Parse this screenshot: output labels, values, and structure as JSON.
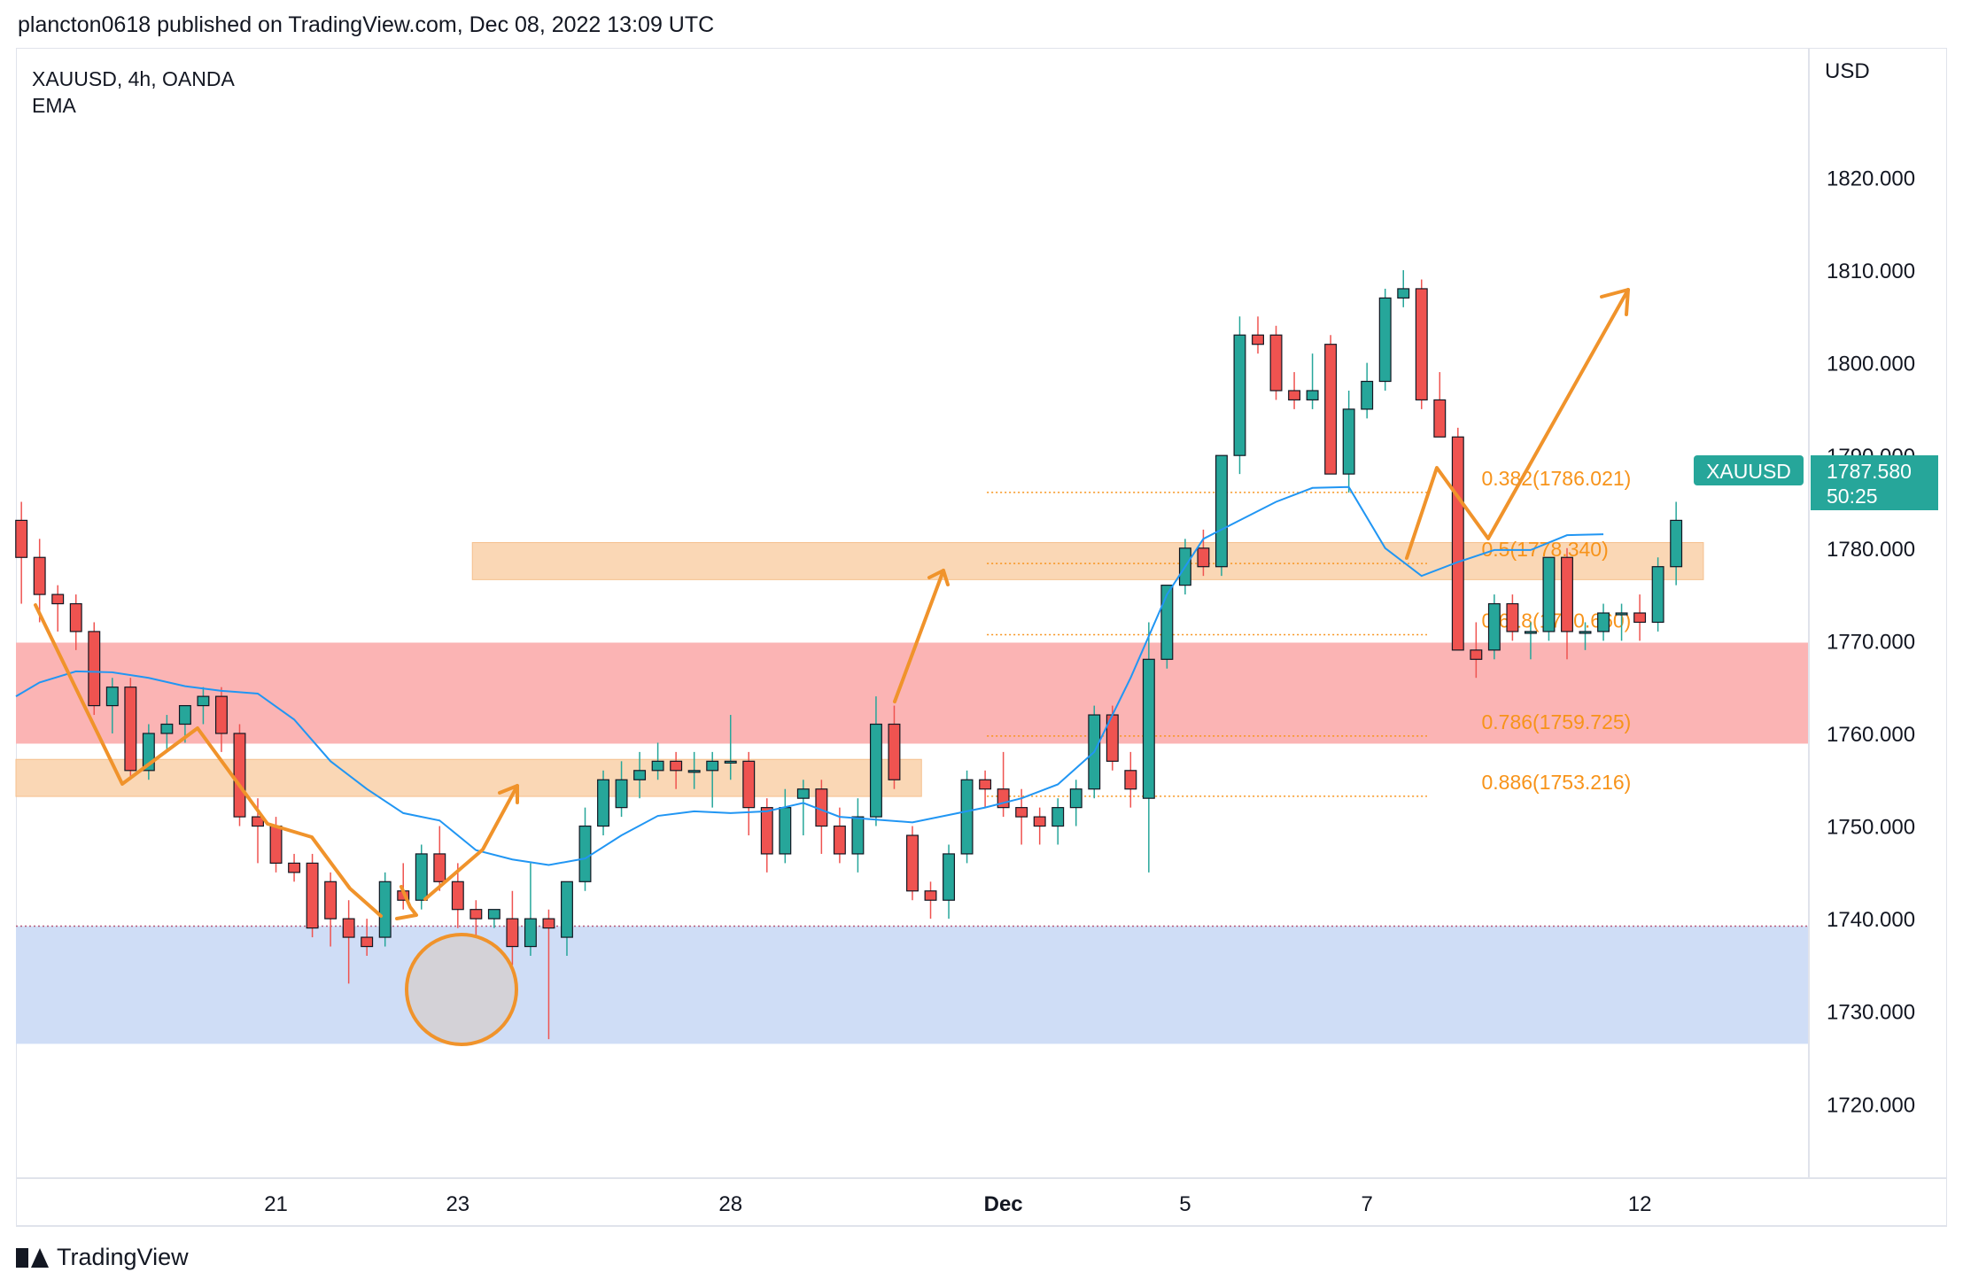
{
  "header": {
    "published": "plancton0618 published on TradingView.com, Dec 08, 2022 13:09 UTC"
  },
  "symbol_line": "XAUUSD, 4h, OANDA",
  "indicator_line": "EMA",
  "currency": "USD",
  "brand": "TradingView",
  "price_badge": {
    "symbol": "XAUUSD",
    "price": "1787.580",
    "countdown": "50:25",
    "color": "#26a69a"
  },
  "colors": {
    "up": "#26a69a",
    "down": "#ef5350",
    "ema": "#2196f3",
    "fib": "#f7931a",
    "red_zone": "#fbb4b4",
    "orange_zone": "#fad7b5",
    "blue_zone": "#cfddf6"
  },
  "chart_data": {
    "type": "candlestick",
    "ylim": [
      1712,
      1834
    ],
    "y_ticks": [
      "1820.000",
      "1810.000",
      "1800.000",
      "1790.000",
      "1780.000",
      "1770.000",
      "1760.000",
      "1750.000",
      "1740.000",
      "1730.000",
      "1720.000"
    ],
    "y_tick_values": [
      1820,
      1810,
      1800,
      1790,
      1780,
      1770,
      1760,
      1750,
      1740,
      1730,
      1720
    ],
    "x_ticks": [
      {
        "label": "21",
        "index": 14
      },
      {
        "label": "23",
        "index": 24
      },
      {
        "label": "28",
        "index": 39
      },
      {
        "label": "Dec",
        "index": 54,
        "bold": true
      },
      {
        "label": "5",
        "index": 64
      },
      {
        "label": "7",
        "index": 74
      },
      {
        "label": "12",
        "index": 89
      }
    ],
    "x_range_index": [
      -0.3,
      98.3
    ],
    "candles": [
      [
        1783,
        1785,
        1774,
        1779
      ],
      [
        1779,
        1781,
        1772,
        1775
      ],
      [
        1775,
        1776,
        1771,
        1774
      ],
      [
        1774,
        1775,
        1769,
        1771
      ],
      [
        1771,
        1772,
        1762,
        1763
      ],
      [
        1763,
        1766,
        1760,
        1765
      ],
      [
        1765,
        1766,
        1755,
        1756
      ],
      [
        1756,
        1761,
        1755,
        1760
      ],
      [
        1760,
        1762,
        1758,
        1761
      ],
      [
        1761,
        1763,
        1759,
        1763
      ],
      [
        1763,
        1765,
        1761,
        1764
      ],
      [
        1764,
        1765,
        1758,
        1760
      ],
      [
        1760,
        1761,
        1750,
        1751
      ],
      [
        1751,
        1753,
        1746,
        1750
      ],
      [
        1750,
        1751,
        1745,
        1746
      ],
      [
        1746,
        1747,
        1744,
        1745
      ],
      [
        1746,
        1747,
        1738,
        1739
      ],
      [
        1744,
        1745,
        1737,
        1740
      ],
      [
        1740,
        1742,
        1733,
        1738
      ],
      [
        1738,
        1740,
        1736,
        1737
      ],
      [
        1738,
        1745,
        1737,
        1744
      ],
      [
        1743,
        1746,
        1741,
        1742
      ],
      [
        1742,
        1748,
        1741,
        1747
      ],
      [
        1747,
        1750,
        1743,
        1744
      ],
      [
        1744,
        1746,
        1739,
        1741
      ],
      [
        1741,
        1742,
        1738,
        1740
      ],
      [
        1740,
        1741,
        1739,
        1741
      ],
      [
        1740,
        1743,
        1735,
        1737
      ],
      [
        1737,
        1746,
        1736,
        1740
      ],
      [
        1740,
        1741,
        1727,
        1739
      ],
      [
        1738,
        1744,
        1736,
        1744
      ],
      [
        1744,
        1752,
        1743,
        1750
      ],
      [
        1750,
        1756,
        1749,
        1755
      ],
      [
        1752,
        1757,
        1751,
        1755
      ],
      [
        1755,
        1758,
        1753,
        1756
      ],
      [
        1756,
        1759,
        1755,
        1757
      ],
      [
        1757,
        1758,
        1754,
        1756
      ],
      [
        1756,
        1758,
        1754,
        1756
      ],
      [
        1756,
        1758,
        1752,
        1757
      ],
      [
        1757,
        1762,
        1755,
        1757
      ],
      [
        1757,
        1758,
        1749,
        1752
      ],
      [
        1752,
        1753,
        1745,
        1747
      ],
      [
        1747,
        1754,
        1746,
        1752
      ],
      [
        1753,
        1755,
        1749,
        1754
      ],
      [
        1754,
        1755,
        1747,
        1750
      ],
      [
        1750,
        1752,
        1746,
        1747
      ],
      [
        1747,
        1753,
        1745,
        1751
      ],
      [
        1751,
        1764,
        1750,
        1761
      ],
      [
        1761,
        1763,
        1754,
        1755
      ],
      [
        1749,
        1750,
        1742,
        1743
      ],
      [
        1743,
        1744,
        1740,
        1742
      ],
      [
        1742,
        1748,
        1740,
        1747
      ],
      [
        1747,
        1756,
        1746,
        1755
      ],
      [
        1755,
        1756,
        1752,
        1754
      ],
      [
        1754,
        1758,
        1751,
        1752
      ],
      [
        1752,
        1754,
        1748,
        1751
      ],
      [
        1751,
        1752,
        1748,
        1750
      ],
      [
        1750,
        1753,
        1748,
        1752
      ],
      [
        1752,
        1755,
        1750,
        1754
      ],
      [
        1754,
        1763,
        1753,
        1762
      ],
      [
        1762,
        1763,
        1756,
        1757
      ],
      [
        1756,
        1758,
        1752,
        1754
      ],
      [
        1753,
        1772,
        1745,
        1768
      ],
      [
        1768,
        1776,
        1767,
        1776
      ],
      [
        1776,
        1781,
        1775,
        1780
      ],
      [
        1780,
        1782,
        1777,
        1778
      ],
      [
        1778,
        1790,
        1777,
        1790
      ],
      [
        1790,
        1805,
        1788,
        1803
      ],
      [
        1803,
        1805,
        1801,
        1802
      ],
      [
        1803,
        1804,
        1796,
        1797
      ],
      [
        1797,
        1799,
        1795,
        1796
      ],
      [
        1796,
        1801,
        1795,
        1797
      ],
      [
        1802,
        1803,
        1788,
        1788
      ],
      [
        1788,
        1797,
        1786,
        1795
      ],
      [
        1795,
        1800,
        1794,
        1798
      ],
      [
        1798,
        1808,
        1797,
        1807
      ],
      [
        1807,
        1810,
        1806,
        1808
      ],
      [
        1808,
        1809,
        1795,
        1796
      ],
      [
        1796,
        1799,
        1792,
        1792
      ],
      [
        1792,
        1793,
        1769,
        1769
      ],
      [
        1769,
        1772,
        1766,
        1768
      ],
      [
        1769,
        1775,
        1768,
        1774
      ],
      [
        1774,
        1775,
        1770,
        1771
      ],
      [
        1771,
        1772,
        1768,
        1771
      ],
      [
        1771,
        1779,
        1770,
        1779
      ],
      [
        1779,
        1780,
        1768,
        1771
      ],
      [
        1771,
        1772,
        1769,
        1771
      ],
      [
        1771,
        1774,
        1770,
        1773
      ],
      [
        1773,
        1774,
        1770,
        1773
      ],
      [
        1773,
        1775,
        1770,
        1772
      ],
      [
        1772,
        1779,
        1771,
        1778
      ],
      [
        1778,
        1785,
        1776,
        1783
      ]
    ],
    "ema": [
      [
        -0.3,
        1764
      ],
      [
        1,
        1765.5
      ],
      [
        3,
        1766.7
      ],
      [
        5,
        1766.6
      ],
      [
        7,
        1766
      ],
      [
        9,
        1765.1
      ],
      [
        11,
        1764.6
      ],
      [
        13,
        1764.3
      ],
      [
        15,
        1761.5
      ],
      [
        17,
        1757
      ],
      [
        19,
        1754
      ],
      [
        21,
        1751.4
      ],
      [
        23,
        1750.6
      ],
      [
        25,
        1747.4
      ],
      [
        27,
        1746.4
      ],
      [
        29,
        1745.8
      ],
      [
        31,
        1746.5
      ],
      [
        33,
        1749
      ],
      [
        35,
        1751.1
      ],
      [
        37,
        1751.6
      ],
      [
        39,
        1751.4
      ],
      [
        41,
        1751.6
      ],
      [
        43,
        1752.5
      ],
      [
        45,
        1751
      ],
      [
        47,
        1750.7
      ],
      [
        49,
        1750.4
      ],
      [
        51,
        1751.2
      ],
      [
        53,
        1752
      ],
      [
        55,
        1753
      ],
      [
        57,
        1754.5
      ],
      [
        59,
        1758
      ],
      [
        61,
        1766
      ],
      [
        63,
        1775
      ],
      [
        65,
        1781
      ],
      [
        67,
        1783
      ],
      [
        69,
        1785
      ],
      [
        71,
        1786.5
      ],
      [
        73,
        1786.6
      ],
      [
        75,
        1780
      ],
      [
        77,
        1777
      ],
      [
        79,
        1778.5
      ],
      [
        81,
        1779.8
      ],
      [
        83,
        1779.8
      ],
      [
        85,
        1781.4
      ],
      [
        87,
        1781.5
      ]
    ],
    "fib_levels": [
      {
        "label": "0.382(1786.021)",
        "value": 1786.021
      },
      {
        "label": "0.5(1778.340)",
        "value": 1778.34
      },
      {
        "label": "0.618(1770.660)",
        "value": 1770.66
      },
      {
        "label": "0.786(1759.725)",
        "value": 1759.725
      },
      {
        "label": "0.886(1753.216)",
        "value": 1753.216
      }
    ],
    "zones": [
      {
        "name": "supply-zone-upper",
        "from": 1776.6,
        "to": 1780.6,
        "x0": 24.8,
        "x1": 92.5,
        "color": "orange"
      },
      {
        "name": "red-zone",
        "from": 1758.9,
        "to": 1769.8,
        "x0": -0.3,
        "x1": 98.3,
        "color": "red"
      },
      {
        "name": "supply-zone-lower",
        "from": 1753.2,
        "to": 1757.2,
        "x0": -0.3,
        "x1": 49.5,
        "color": "orange"
      },
      {
        "name": "demand-zone",
        "from": 1726.5,
        "to": 1739.2,
        "x0": -0.3,
        "x1": 98.3,
        "color": "blue"
      }
    ],
    "current_price": 1787.58
  }
}
